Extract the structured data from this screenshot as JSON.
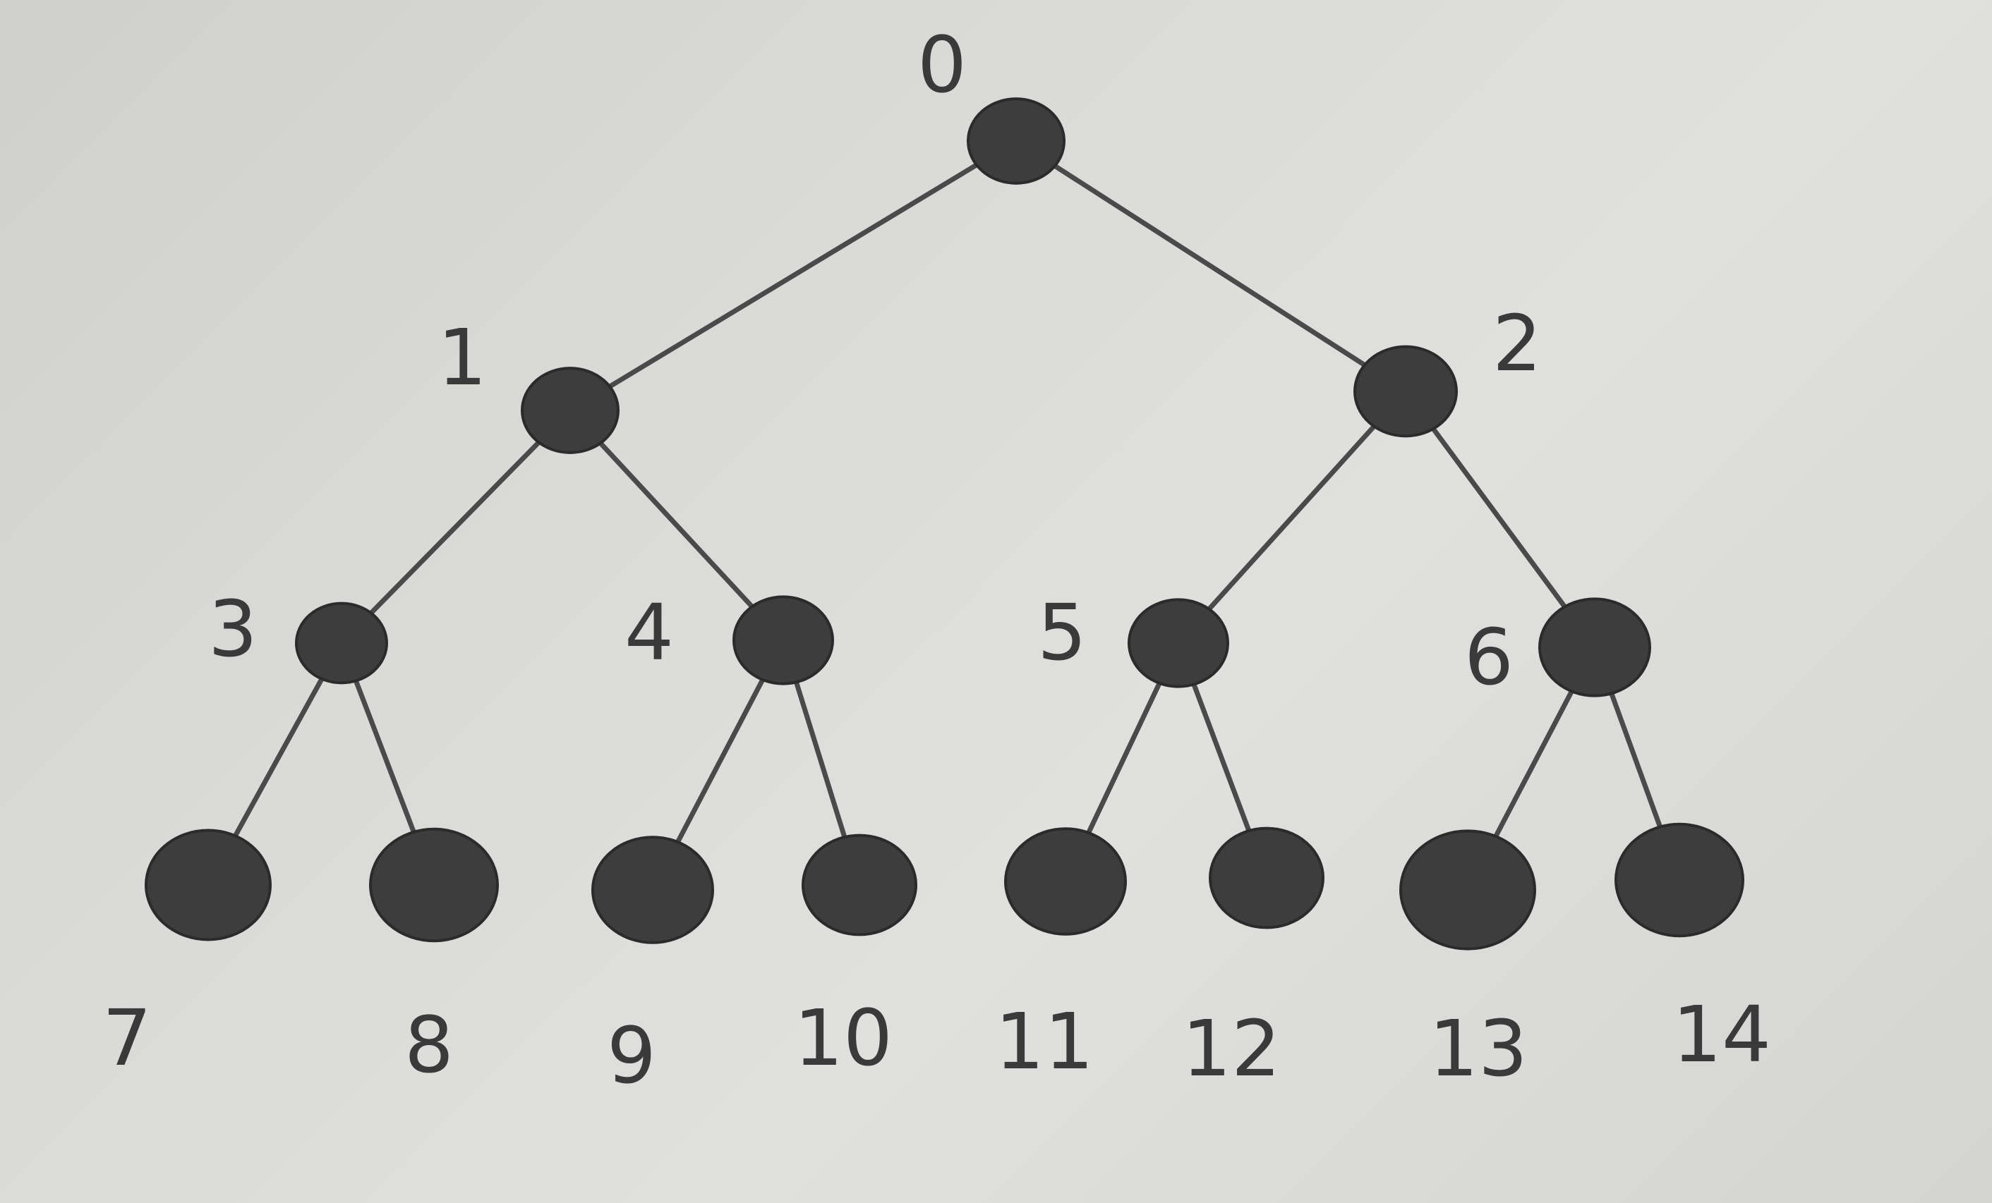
{
  "tree": {
    "nodes": [
      {
        "id": 0,
        "label": "0",
        "parent": null,
        "leaf": false
      },
      {
        "id": 1,
        "label": "1",
        "parent": 0,
        "leaf": false
      },
      {
        "id": 2,
        "label": "2",
        "parent": 0,
        "leaf": false
      },
      {
        "id": 3,
        "label": "3",
        "parent": 1,
        "leaf": false
      },
      {
        "id": 4,
        "label": "4",
        "parent": 1,
        "leaf": false
      },
      {
        "id": 5,
        "label": "5",
        "parent": 2,
        "leaf": false
      },
      {
        "id": 6,
        "label": "6",
        "parent": 2,
        "leaf": false
      },
      {
        "id": 7,
        "label": "7",
        "parent": 3,
        "leaf": true
      },
      {
        "id": 8,
        "label": "8",
        "parent": 3,
        "leaf": true
      },
      {
        "id": 9,
        "label": "9",
        "parent": 4,
        "leaf": true
      },
      {
        "id": 10,
        "label": "10",
        "parent": 4,
        "leaf": true
      },
      {
        "id": 11,
        "label": "11",
        "parent": 5,
        "leaf": true
      },
      {
        "id": 12,
        "label": "12",
        "parent": 5,
        "leaf": true
      },
      {
        "id": 13,
        "label": "13",
        "parent": 6,
        "leaf": true
      },
      {
        "id": 14,
        "label": "14",
        "parent": 6,
        "leaf": true
      }
    ]
  },
  "colors": {
    "node_fill": "#3d3d3d",
    "edge": "#4a4a4a",
    "label": "#3a3a3a",
    "paper": "#dcdcda"
  }
}
